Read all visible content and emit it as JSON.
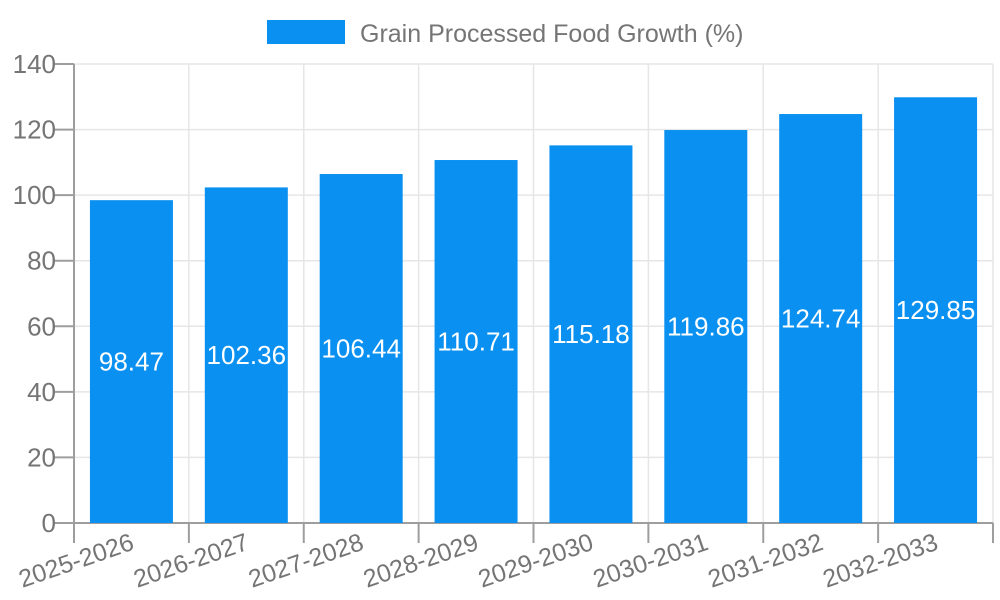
{
  "chart_data": {
    "type": "bar",
    "title": "Grain Processed Food Growth (%)",
    "categories": [
      "2025-2026",
      "2026-2027",
      "2027-2028",
      "2028-2029",
      "2029-2030",
      "2030-2031",
      "2031-2032",
      "2032-2033"
    ],
    "values": [
      98.47,
      102.36,
      106.44,
      110.71,
      115.18,
      119.86,
      124.74,
      129.85
    ],
    "value_labels": [
      "98.47",
      "102.36",
      "106.44",
      "110.71",
      "115.18",
      "119.86",
      "124.74",
      "129.85"
    ],
    "xlabel": "",
    "ylabel": "",
    "ylim": [
      0,
      140
    ],
    "yticks": [
      0,
      20,
      40,
      60,
      80,
      100,
      120,
      140
    ],
    "ytick_labels": [
      "0",
      "20",
      "40",
      "60",
      "80",
      "100",
      "120",
      "140"
    ],
    "grid": true,
    "legend_position": "top-center",
    "colors": {
      "bar": "#0a90f1",
      "axis": "#9e9e9e",
      "grid": "#e6e6e6",
      "text": "#757575",
      "value_label": "#ffffff",
      "background": "#ffffff"
    }
  }
}
